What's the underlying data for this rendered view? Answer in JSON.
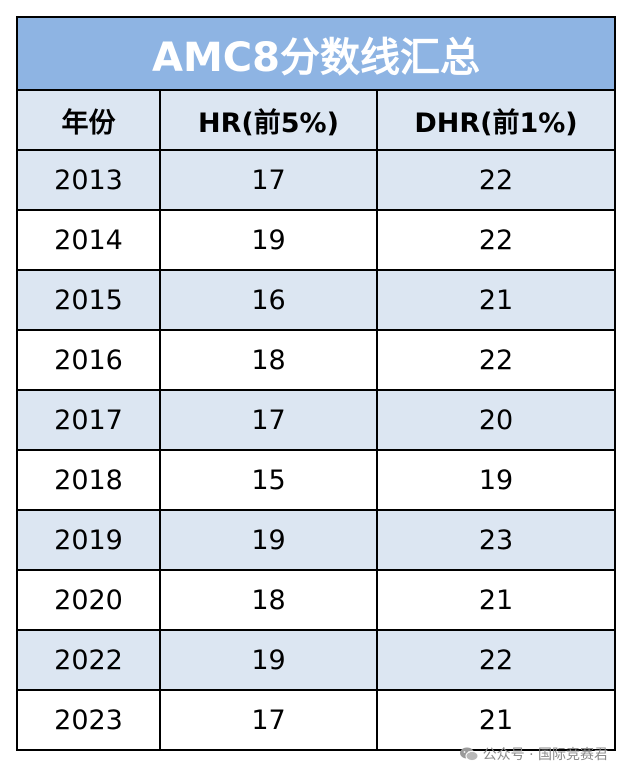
{
  "table": {
    "title": "AMC8分数线汇总",
    "headers": [
      "年份",
      "HR(前5%)",
      "DHR(前1%)"
    ],
    "rows": [
      [
        "2013",
        "17",
        "22"
      ],
      [
        "2014",
        "19",
        "22"
      ],
      [
        "2015",
        "16",
        "21"
      ],
      [
        "2016",
        "18",
        "22"
      ],
      [
        "2017",
        "17",
        "20"
      ],
      [
        "2018",
        "15",
        "19"
      ],
      [
        "2019",
        "19",
        "23"
      ],
      [
        "2020",
        "18",
        "21"
      ],
      [
        "2022",
        "19",
        "22"
      ],
      [
        "2023",
        "17",
        "21"
      ]
    ]
  },
  "watermark": {
    "icon": "wechat-icon",
    "text": "公众号 · 国际竞赛君"
  },
  "colors": {
    "title_bg": "#8eb4e3",
    "band_bg": "#dce6f2",
    "border": "#000000"
  }
}
